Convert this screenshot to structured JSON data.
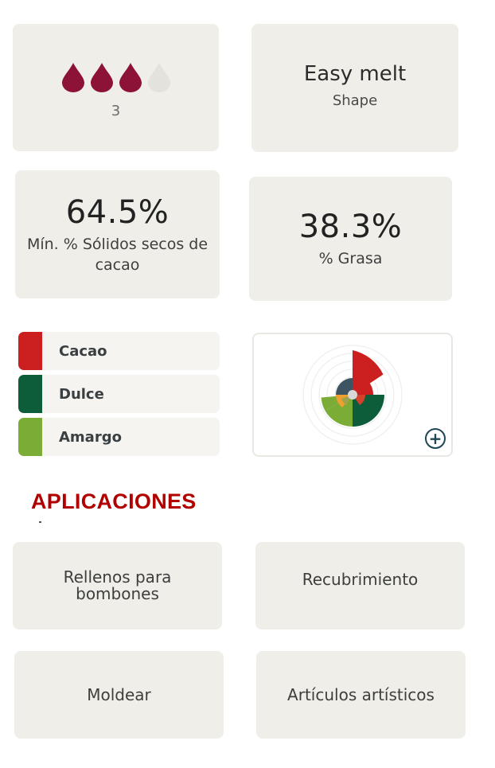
{
  "fluidity": {
    "level": 3,
    "max": 4,
    "value_text": "3",
    "colors": {
      "filled": "#8c1237",
      "empty": "#e3e2dd"
    }
  },
  "shape": {
    "value": "Easy melt",
    "label": "Shape"
  },
  "cocoa_solids": {
    "value": "64.5%",
    "label": "Mín. % Sólidos secos de cacao"
  },
  "fat": {
    "value": "38.3%",
    "label": "% Grasa"
  },
  "flavor_profile": {
    "items": [
      {
        "label": "Cacao",
        "color": "#cc2020"
      },
      {
        "label": "Dulce",
        "color": "#0d5d3b"
      },
      {
        "label": "Amargo",
        "color": "#7aac36"
      }
    ],
    "expand_icon": "plus-circle-icon"
  },
  "applications": {
    "heading": "APLICACIONES",
    "items": [
      {
        "label": "Rellenos para bombones"
      },
      {
        "label": "Recubrimiento"
      },
      {
        "label": "Moldear"
      },
      {
        "label": "Artículos artísticos"
      }
    ]
  }
}
